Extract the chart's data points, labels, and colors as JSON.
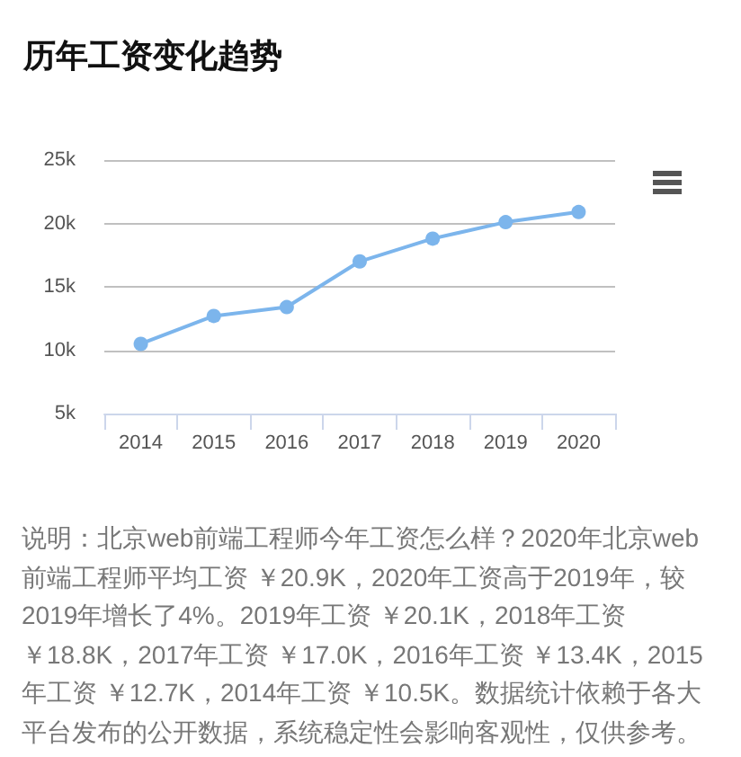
{
  "chart_data": {
    "type": "line",
    "title": "历年工资变化趋势",
    "categories": [
      "2014",
      "2015",
      "2016",
      "2017",
      "2018",
      "2019",
      "2020"
    ],
    "series": [
      {
        "color": "#7cb5ec",
        "values": [
          10.5,
          12.7,
          13.4,
          17.0,
          18.8,
          20.1,
          20.9
        ]
      }
    ],
    "ylim": [
      5,
      25
    ],
    "yticks": [
      {
        "value": 5,
        "label": "5k"
      },
      {
        "value": 10,
        "label": "10k"
      },
      {
        "value": 15,
        "label": "15k"
      },
      {
        "value": 20,
        "label": "20k"
      },
      {
        "value": 25,
        "label": "25k"
      }
    ],
    "grid": "y",
    "marker": "circle",
    "annotations": [
      "说明：北京web前端工程师今年工资怎么样？2020年北京web前端工程师平均工资 ￥20.9K，2020年工资高于2019年，较2019年增长了4%。2019年工资 ￥20.1K，2018年工资￥18.8K，2017年工资 ￥17.0K，2016年工资 ￥13.4K，2015年工资 ￥12.7K，2014年工资 ￥10.5K。数据统计依赖于各大平台发布的公开数据，系统稳定性会影响客观性，仅供参考。"
    ]
  }
}
